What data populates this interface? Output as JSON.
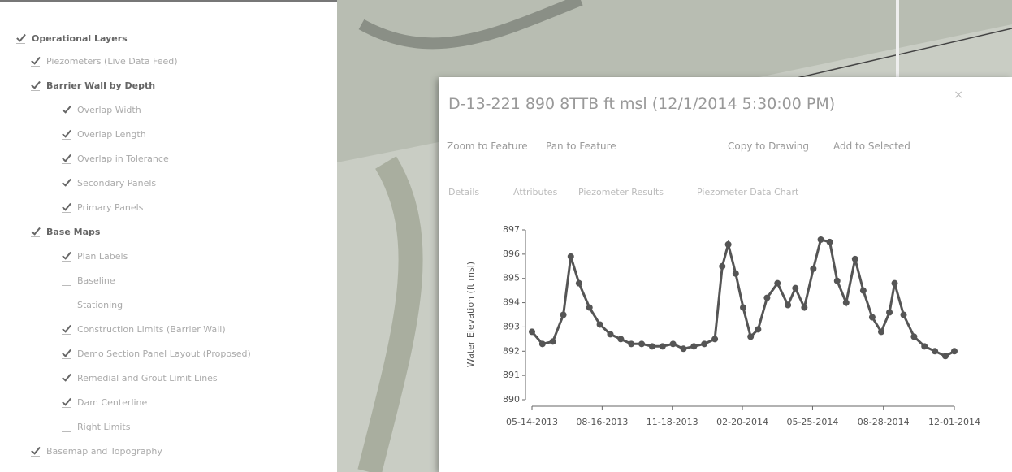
{
  "layers": {
    "title": "Operational Layers",
    "items": [
      {
        "label": "Piezometers (Live Data Feed)",
        "level": 1,
        "checked": true,
        "group": false
      },
      {
        "label": "Barrier Wall by Depth",
        "level": 1,
        "checked": true,
        "group": true
      },
      {
        "label": "Overlap Width",
        "level": 2,
        "checked": true,
        "group": false
      },
      {
        "label": "Overlap Length",
        "level": 2,
        "checked": true,
        "group": false
      },
      {
        "label": "Overlap in Tolerance",
        "level": 2,
        "checked": true,
        "group": false
      },
      {
        "label": "Secondary Panels",
        "level": 2,
        "checked": true,
        "group": false
      },
      {
        "label": "Primary Panels",
        "level": 2,
        "checked": true,
        "group": false
      },
      {
        "label": "Base Maps",
        "level": 1,
        "checked": true,
        "group": true
      },
      {
        "label": "Plan Labels",
        "level": 2,
        "checked": true,
        "group": false
      },
      {
        "label": "Baseline",
        "level": 2,
        "checked": false,
        "group": false
      },
      {
        "label": "Stationing",
        "level": 2,
        "checked": false,
        "group": false
      },
      {
        "label": "Construction Limits (Barrier Wall)",
        "level": 2,
        "checked": true,
        "group": false
      },
      {
        "label": "Demo Section Panel Layout (Proposed)",
        "level": 2,
        "checked": true,
        "group": false
      },
      {
        "label": "Remedial and Grout Limit Lines",
        "level": 2,
        "checked": true,
        "group": false
      },
      {
        "label": "Dam Centerline",
        "level": 2,
        "checked": true,
        "group": false
      },
      {
        "label": "Right Limits",
        "level": 2,
        "checked": false,
        "group": false
      },
      {
        "label": "Basemap and Topography",
        "level": 1,
        "checked": true,
        "group": false
      }
    ]
  },
  "popup": {
    "title": "D-13-221 890 8TTB ft msl (12/1/2014 5:30:00 PM)",
    "actions": [
      "Zoom to Feature",
      "Pan to Feature",
      "Copy to Drawing",
      "Add to Selected"
    ],
    "tabs": [
      "Details",
      "Attributes",
      "Piezometer Results",
      "Piezometer Data Chart"
    ]
  },
  "chart_data": {
    "type": "line",
    "y_label": "Water Elevation (ft msl)",
    "color": "#555555",
    "x": [
      "05-14-2013",
      "05-28-2013",
      "06-11-2013",
      "06-25-2013",
      "07-05-2013",
      "07-16-2013",
      "07-30-2013",
      "08-13-2013",
      "08-27-2013",
      "09-10-2013",
      "09-24-2013",
      "10-08-2013",
      "10-22-2013",
      "11-05-2013",
      "11-19-2013",
      "12-03-2013",
      "12-17-2013",
      "12-31-2013",
      "01-14-2014",
      "01-24-2014",
      "02-01-2014",
      "02-11-2014",
      "02-21-2014",
      "03-03-2014",
      "03-13-2014",
      "03-25-2014",
      "04-08-2014",
      "04-22-2014",
      "05-02-2014",
      "05-14-2014",
      "05-26-2014",
      "06-05-2014",
      "06-17-2014",
      "06-27-2014",
      "07-09-2014",
      "07-21-2014",
      "08-01-2014",
      "08-13-2014",
      "08-25-2014",
      "09-05-2014",
      "09-12-2014",
      "09-24-2014",
      "10-08-2014",
      "10-22-2014",
      "11-05-2014",
      "11-19-2014",
      "12-01-2014"
    ],
    "values": [
      892.8,
      892.3,
      892.4,
      893.5,
      895.9,
      894.8,
      893.8,
      893.1,
      892.7,
      892.5,
      892.3,
      892.3,
      892.2,
      892.2,
      892.3,
      892.1,
      892.2,
      892.3,
      892.5,
      895.5,
      896.4,
      895.2,
      893.8,
      892.6,
      892.9,
      894.2,
      894.8,
      893.9,
      894.6,
      893.8,
      895.4,
      896.6,
      896.5,
      894.9,
      894.0,
      895.8,
      894.5,
      893.4,
      892.8,
      893.6,
      894.8,
      893.5,
      892.6,
      892.2,
      892.0,
      891.8,
      892.0
    ],
    "xlim": [
      "05-14-2013",
      "12-01-2014"
    ],
    "xticks": [
      "05-14-2013",
      "08-16-2013",
      "11-18-2013",
      "02-20-2014",
      "05-25-2014",
      "08-28-2014",
      "12-01-2014"
    ],
    "ylim": [
      890,
      897
    ],
    "yticks": [
      890,
      891,
      892,
      893,
      894,
      895,
      896,
      897
    ]
  }
}
